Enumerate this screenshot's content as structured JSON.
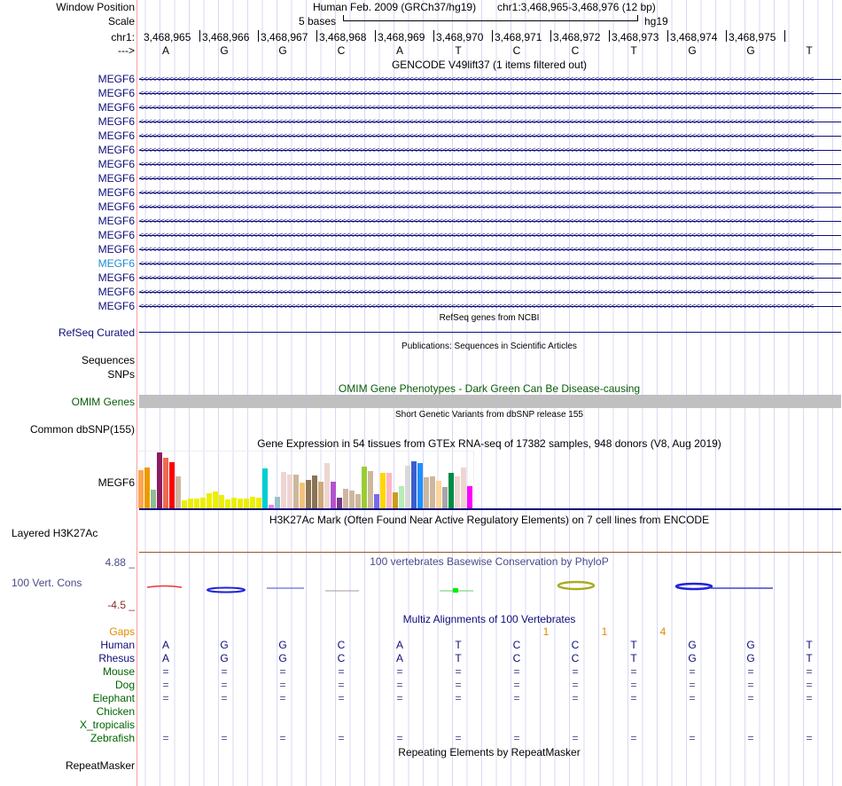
{
  "labels": {
    "window_position": "Window Position",
    "scale": "Scale",
    "chr": "chr1:",
    "strand": "--->"
  },
  "header": {
    "assembly": "Human Feb. 2009 (GRCh37/hg19)",
    "position": "chr1:3,468,965-3,468,976 (12 bp)",
    "scale_text": "5 bases",
    "db": "hg19"
  },
  "ruler": [
    "3,468,965",
    "3,468,966",
    "3,468,967",
    "3,468,968",
    "3,468,969",
    "3,468,970",
    "3,468,971",
    "3,468,972",
    "3,468,973",
    "3,468,974",
    "3,468,975"
  ],
  "bases": [
    "A",
    "G",
    "G",
    "C",
    "A",
    "T",
    "C",
    "C",
    "T",
    "G",
    "G",
    "T"
  ],
  "gencode": {
    "title": "GENCODE V49lift37 (1 items filtered out)",
    "genes": [
      "MEGF6",
      "MEGF6",
      "MEGF6",
      "MEGF6",
      "MEGF6",
      "MEGF6",
      "MEGF6",
      "MEGF6",
      "MEGF6",
      "MEGF6",
      "MEGF6",
      "MEGF6",
      "MEGF6",
      "MEGF6",
      "MEGF6",
      "MEGF6",
      "MEGF6"
    ],
    "highlight_index": 13
  },
  "refseq": {
    "title": "RefSeq genes from NCBI",
    "label": "RefSeq Curated"
  },
  "pubs": {
    "title": "Publications: Sequences in Scientific Articles",
    "label1": "Sequences",
    "label2": "SNPs"
  },
  "omim": {
    "title": "OMIM Gene Phenotypes - Dark Green Can Be Disease-causing",
    "label": "OMIM Genes"
  },
  "dbsnp": {
    "title": "Short Genetic Variants from dbSNP release 155",
    "label": "Common dbSNP(155)"
  },
  "gtex": {
    "title": "Gene Expression in 54 tissues from GTEx RNA-seq of 17382 samples, 948 donors (V8, Aug 2019)",
    "label": "MEGF6",
    "values": [
      131,
      141,
      65,
      194,
      176,
      161,
      110,
      29,
      35,
      33,
      38,
      53,
      57,
      45,
      30,
      38,
      33,
      33,
      41,
      38,
      137,
      11,
      41,
      125,
      116,
      116,
      89,
      98,
      113,
      92,
      158,
      92,
      38,
      68,
      62,
      50,
      146,
      128,
      50,
      122,
      122,
      56,
      77,
      149,
      164,
      158,
      107,
      110,
      95,
      74,
      122,
      110,
      143,
      77
    ],
    "colors": [
      "#ffa54f",
      "#ee9a00",
      "#8fbc8f",
      "#8b1c62",
      "#ee6a50",
      "#ff0000",
      "#cdb79e",
      "#eeee00",
      "#eeee00",
      "#eeee00",
      "#eeee00",
      "#eeee00",
      "#eeee00",
      "#eeee00",
      "#eeee00",
      "#eeee00",
      "#eeee00",
      "#eeee00",
      "#eeee00",
      "#eeee00",
      "#00ced1",
      "#ee82ee",
      "#9ac0cd",
      "#eed5d2",
      "#eed5d2",
      "#cdb79e",
      "#f4c17a",
      "#8b7355",
      "#8b7355",
      "#cdaa7d",
      "#eed5d2",
      "#b452cd",
      "#7a378b",
      "#cdb79e",
      "#cdb79e",
      "#cdb79e",
      "#9acd32",
      "#cdb79e",
      "#7b68ee",
      "#ffd700",
      "#ffb6c1",
      "#cd9b1d",
      "#b4eeb4",
      "#d9d9d9",
      "#3a5fcd",
      "#1e90ff",
      "#cdb79e",
      "#cdb79e",
      "#ffd39b",
      "#a6a6a6",
      "#008b45",
      "#eed5d2",
      "#eed5d2",
      "#ff00ff"
    ]
  },
  "h3k27ac": {
    "title": "H3K27Ac Mark (Often Found Near Active Regulatory Elements) on 7 cell lines from ENCODE",
    "label": "Layered H3K27Ac"
  },
  "cons": {
    "title": "100 vertebrates Basewise Conservation by PhyloP",
    "label": "100 Vert. Cons",
    "max": "4.88 _",
    "min": "-4.5 _"
  },
  "multiz": {
    "title": "Multiz Alignments of 100 Vertebrates",
    "gaps_label": "Gaps",
    "gaps": [
      {
        "base": 7,
        "text": "1"
      },
      {
        "base": 8,
        "text": "1"
      },
      {
        "base": 9,
        "text": "4"
      }
    ],
    "species": [
      {
        "name": "Human",
        "row": [
          "A",
          "G",
          "G",
          "C",
          "A",
          "T",
          "C",
          "C",
          "T",
          "G",
          "G",
          "T"
        ]
      },
      {
        "name": "Rhesus",
        "row": [
          "A",
          "G",
          "G",
          "C",
          "A",
          "T",
          "C",
          "C",
          "T",
          "G",
          "G",
          "T"
        ]
      },
      {
        "name": "Mouse",
        "row": [
          "=",
          "=",
          "=",
          "=",
          "=",
          "=",
          "=",
          "=",
          "=",
          "=",
          "=",
          "="
        ]
      },
      {
        "name": "Dog",
        "row": [
          "=",
          "=",
          "=",
          "=",
          "=",
          "=",
          "=",
          "=",
          "=",
          "=",
          "=",
          "="
        ]
      },
      {
        "name": "Elephant",
        "row": [
          "=",
          "=",
          "=",
          "=",
          "=",
          "=",
          "=",
          "=",
          "=",
          "=",
          "=",
          "="
        ]
      },
      {
        "name": "Chicken",
        "row": []
      },
      {
        "name": "X_tropicalis",
        "row": []
      },
      {
        "name": "Zebrafish",
        "row": [
          "=",
          "=",
          "=",
          "=",
          "=",
          "=",
          "=",
          "=",
          "=",
          "=",
          "=",
          "="
        ]
      }
    ]
  },
  "repeatmasker": {
    "title": "Repeating Elements by RepeatMasker",
    "label": "RepeatMasker"
  },
  "colors": {
    "navy": "#0d0d7a",
    "omim_bar": "#c0c0c0",
    "omim_title": "#0a5c0a",
    "gaps": "#e08a00",
    "cons_label": "#4a4a8a",
    "species": "#006400",
    "human": "#0d0d7a"
  }
}
